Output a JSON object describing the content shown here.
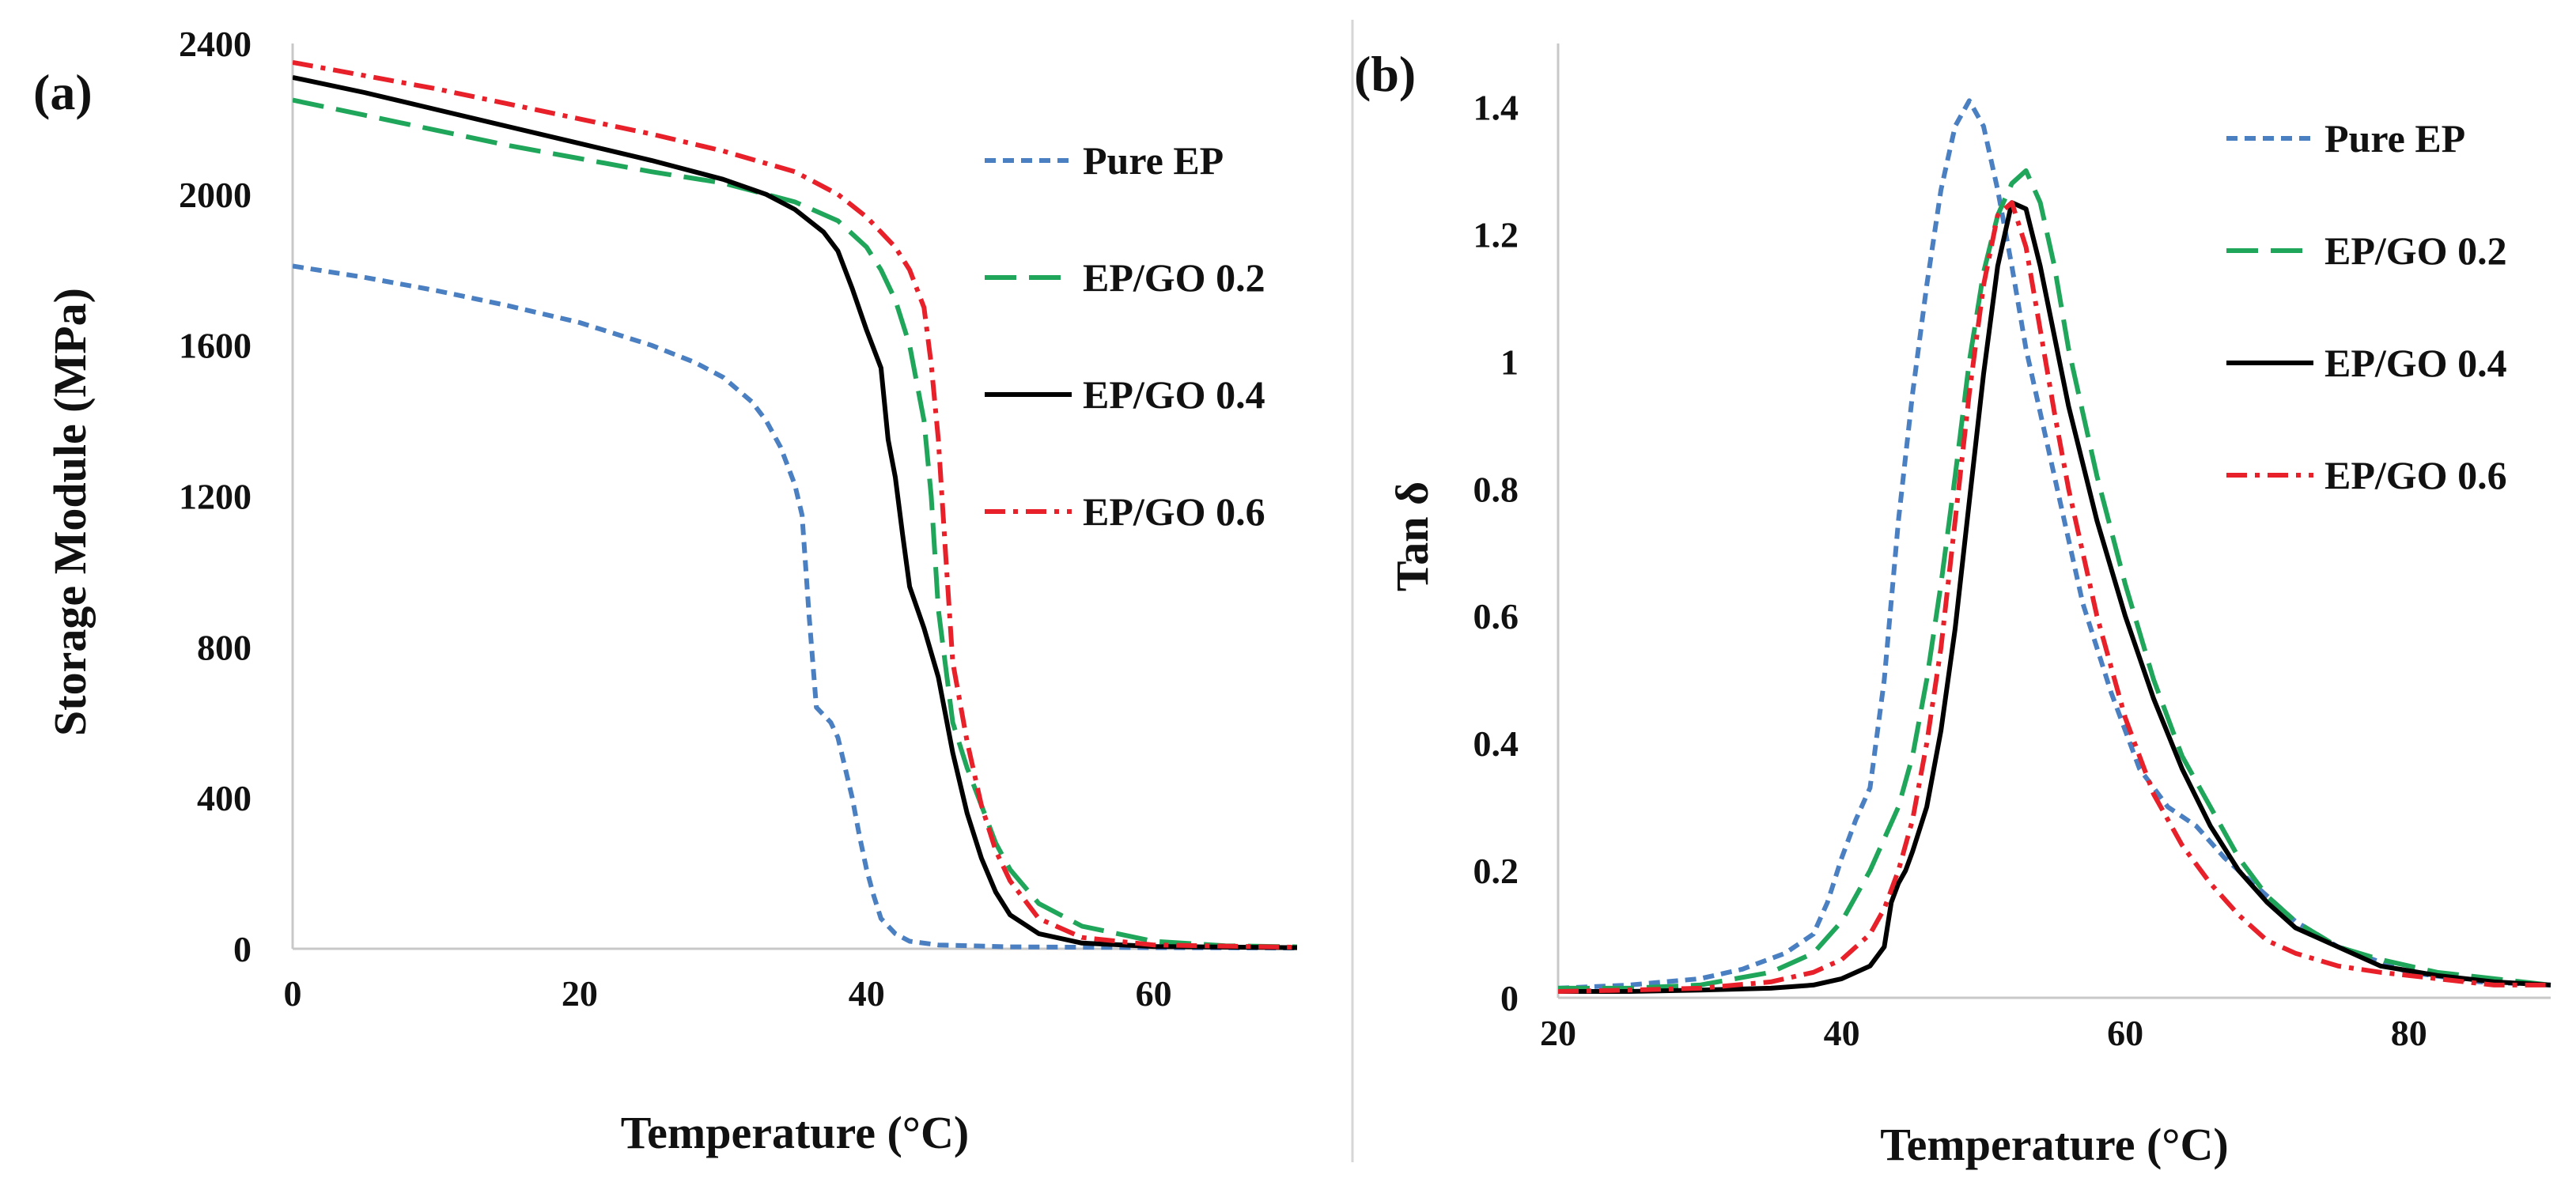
{
  "chart_data": [
    {
      "type": "line",
      "panel_label": "(a)",
      "xlabel": "Temperature (°C)",
      "ylabel": "Storage Module (MPa)",
      "xlim": [
        0,
        70
      ],
      "ylim": [
        0,
        2400
      ],
      "xticks": [
        0,
        20,
        40,
        60
      ],
      "yticks": [
        0,
        400,
        800,
        1200,
        1600,
        2000,
        2400
      ],
      "grid": false,
      "legend_position": "top-right",
      "series": [
        {
          "name": "Pure EP",
          "color": "#4a7fc1",
          "dash": "short-dash",
          "x": [
            0,
            5,
            10,
            15,
            20,
            25,
            28,
            30,
            32,
            33,
            34,
            35,
            35.5,
            36,
            36.5,
            37,
            37.5,
            38,
            38.5,
            39,
            39.5,
            40,
            40.5,
            41,
            42,
            43,
            45,
            50,
            60,
            70
          ],
          "y": [
            1810,
            1780,
            1745,
            1705,
            1660,
            1600,
            1555,
            1515,
            1450,
            1400,
            1330,
            1230,
            1150,
            880,
            640,
            620,
            600,
            560,
            480,
            400,
            300,
            210,
            140,
            80,
            40,
            20,
            10,
            5,
            3,
            2
          ]
        },
        {
          "name": "EP/GO 0.2",
          "color": "#1fa65a",
          "dash": "long-dash",
          "x": [
            0,
            5,
            10,
            15,
            20,
            25,
            30,
            35,
            38,
            40,
            41,
            42,
            43,
            44,
            44.5,
            45,
            46,
            47,
            48,
            49,
            50,
            52,
            55,
            60,
            65,
            70
          ],
          "y": [
            2250,
            2210,
            2170,
            2130,
            2095,
            2060,
            2030,
            1980,
            1930,
            1860,
            1800,
            1720,
            1600,
            1400,
            1200,
            900,
            600,
            480,
            380,
            280,
            210,
            120,
            60,
            20,
            8,
            5
          ]
        },
        {
          "name": "EP/GO 0.4",
          "color": "#000000",
          "dash": "solid",
          "x": [
            0,
            5,
            10,
            15,
            20,
            25,
            30,
            33,
            35,
            37,
            38,
            39,
            40,
            41,
            41.5,
            42,
            42.5,
            43,
            44,
            45,
            46,
            47,
            48,
            49,
            50,
            52,
            55,
            60,
            70
          ],
          "y": [
            2310,
            2270,
            2225,
            2180,
            2135,
            2090,
            2040,
            2000,
            1960,
            1900,
            1850,
            1750,
            1640,
            1540,
            1350,
            1250,
            1100,
            960,
            850,
            720,
            520,
            360,
            240,
            150,
            90,
            40,
            15,
            6,
            3
          ]
        },
        {
          "name": "EP/GO 0.6",
          "color": "#e8202a",
          "dash": "dash-dot",
          "x": [
            0,
            5,
            10,
            15,
            20,
            25,
            30,
            35,
            38,
            40,
            42,
            43,
            44,
            44.5,
            45,
            45.5,
            46,
            47,
            48,
            49,
            50,
            52,
            55,
            60,
            70
          ],
          "y": [
            2350,
            2315,
            2280,
            2240,
            2200,
            2160,
            2115,
            2060,
            2000,
            1940,
            1860,
            1800,
            1700,
            1550,
            1350,
            1050,
            760,
            550,
            380,
            260,
            180,
            80,
            30,
            10,
            4
          ]
        }
      ]
    },
    {
      "type": "line",
      "panel_label": "(b)",
      "xlabel": "Temperature (°C)",
      "ylabel": "Tan δ",
      "xlim": [
        20,
        90
      ],
      "ylim": [
        0,
        1.5
      ],
      "xticks": [
        20,
        40,
        60,
        80
      ],
      "yticks": [
        0,
        0.2,
        0.4,
        0.6,
        0.8,
        1,
        1.2,
        1.4
      ],
      "ytick_labels": [
        "0",
        "0.2",
        "0.4",
        "0.6",
        "0.8",
        "1",
        "1.2",
        "1.4"
      ],
      "grid": false,
      "legend_position": "top-right",
      "series": [
        {
          "name": "Pure EP",
          "color": "#4a7fc1",
          "dash": "short-dash",
          "x": [
            20,
            25,
            30,
            33,
            36,
            38,
            39,
            40,
            41,
            42,
            43,
            44,
            45,
            46,
            47,
            48,
            49,
            50,
            51,
            52,
            53,
            55,
            57,
            59,
            61,
            63,
            65,
            67,
            69,
            72,
            75,
            80,
            85,
            90
          ],
          "y": [
            0.015,
            0.02,
            0.03,
            0.045,
            0.07,
            0.1,
            0.15,
            0.22,
            0.28,
            0.33,
            0.5,
            0.75,
            0.95,
            1.12,
            1.27,
            1.37,
            1.41,
            1.37,
            1.27,
            1.15,
            1.02,
            0.82,
            0.62,
            0.48,
            0.36,
            0.3,
            0.27,
            0.22,
            0.18,
            0.12,
            0.08,
            0.04,
            0.025,
            0.02
          ]
        },
        {
          "name": "EP/GO 0.2",
          "color": "#1fa65a",
          "dash": "long-dash",
          "x": [
            20,
            25,
            30,
            35,
            38,
            40,
            41,
            42,
            43,
            44,
            45,
            46,
            47,
            48,
            49,
            50,
            51,
            52,
            53,
            54,
            55,
            56,
            58,
            60,
            62,
            64,
            66,
            68,
            70,
            72,
            75,
            78,
            82,
            86,
            90
          ],
          "y": [
            0.015,
            0.015,
            0.02,
            0.04,
            0.07,
            0.12,
            0.16,
            0.2,
            0.25,
            0.3,
            0.38,
            0.5,
            0.65,
            0.82,
            1.0,
            1.14,
            1.23,
            1.28,
            1.3,
            1.25,
            1.15,
            1.02,
            0.82,
            0.65,
            0.5,
            0.38,
            0.3,
            0.22,
            0.16,
            0.12,
            0.08,
            0.06,
            0.04,
            0.03,
            0.02
          ]
        },
        {
          "name": "EP/GO 0.4",
          "color": "#000000",
          "dash": "solid",
          "x": [
            20,
            25,
            30,
            35,
            38,
            40,
            42,
            43,
            43.5,
            44,
            44.5,
            45,
            46,
            47,
            48,
            49,
            50,
            51,
            52,
            53,
            54,
            55,
            56,
            58,
            60,
            62,
            64,
            66,
            68,
            70,
            72,
            75,
            78,
            82,
            86,
            90
          ],
          "y": [
            0.01,
            0.01,
            0.012,
            0.015,
            0.02,
            0.03,
            0.05,
            0.08,
            0.15,
            0.18,
            0.2,
            0.23,
            0.3,
            0.42,
            0.58,
            0.78,
            0.98,
            1.15,
            1.25,
            1.24,
            1.15,
            1.04,
            0.93,
            0.75,
            0.6,
            0.47,
            0.36,
            0.27,
            0.2,
            0.15,
            0.11,
            0.08,
            0.05,
            0.035,
            0.025,
            0.02
          ]
        },
        {
          "name": "EP/GO 0.6",
          "color": "#e8202a",
          "dash": "dash-dot",
          "x": [
            20,
            25,
            30,
            35,
            38,
            40,
            42,
            43,
            44,
            45,
            46,
            47,
            48,
            49,
            50,
            51,
            52,
            53,
            54,
            55,
            56,
            58,
            60,
            62,
            64,
            66,
            68,
            70,
            72,
            75,
            78,
            82,
            86,
            90
          ],
          "y": [
            0.01,
            0.012,
            0.015,
            0.025,
            0.04,
            0.06,
            0.1,
            0.14,
            0.2,
            0.28,
            0.4,
            0.55,
            0.75,
            0.95,
            1.12,
            1.23,
            1.25,
            1.18,
            1.05,
            0.92,
            0.8,
            0.6,
            0.44,
            0.32,
            0.24,
            0.18,
            0.13,
            0.09,
            0.07,
            0.05,
            0.04,
            0.03,
            0.02,
            0.02
          ]
        }
      ]
    }
  ]
}
